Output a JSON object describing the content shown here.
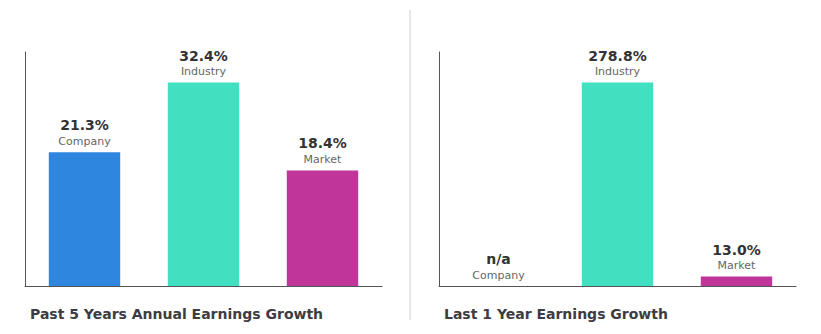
{
  "chart_data": [
    {
      "type": "bar",
      "title": "Past 5 Years Annual Earnings Growth",
      "categories": [
        "Company",
        "Industry",
        "Market"
      ],
      "values": [
        21.3,
        32.4,
        18.4
      ],
      "value_labels": [
        "21.3%",
        "32.4%",
        "18.4%"
      ],
      "colors": [
        "#2E86DE",
        "#40e0c0",
        "#c0359a"
      ],
      "ylim": [
        0,
        37.26
      ],
      "grid": false,
      "data_labels": true,
      "tick_labels": false
    },
    {
      "type": "bar",
      "title": "Last 1 Year Earnings Growth",
      "categories": [
        "Company",
        "Industry",
        "Market"
      ],
      "values": [
        0,
        278.8,
        13.0
      ],
      "value_labels": [
        "n/a",
        "278.8%",
        "13.0%"
      ],
      "colors": [
        "#2E86DE",
        "#40e0c0",
        "#c0359a"
      ],
      "ylim": [
        0,
        320.62
      ],
      "grid": false,
      "data_labels": true,
      "tick_labels": false
    }
  ]
}
